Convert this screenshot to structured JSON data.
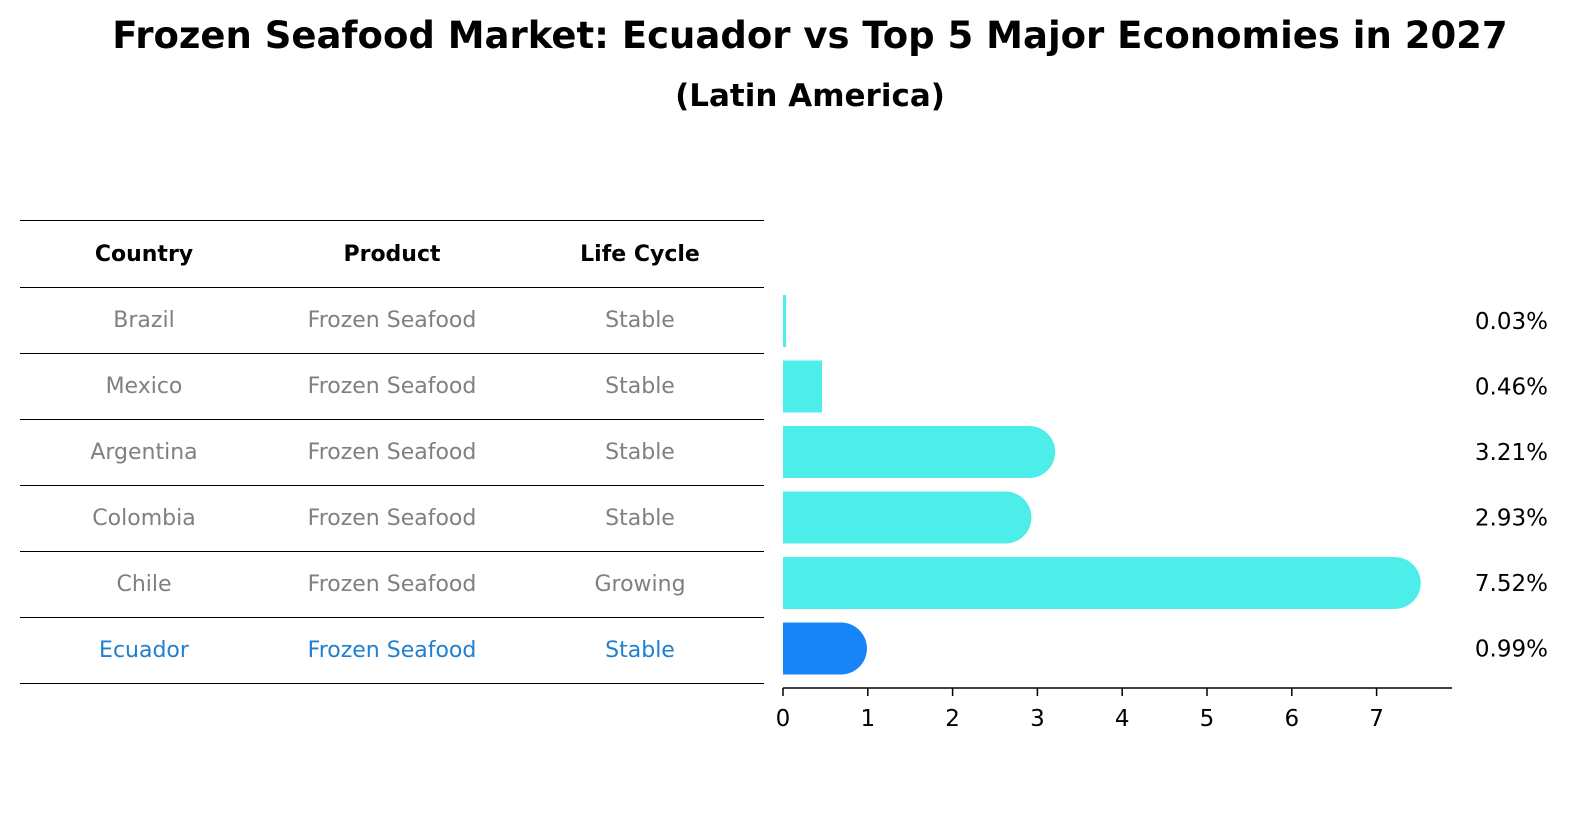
{
  "chart_data": {
    "type": "bar",
    "orientation": "horizontal",
    "title": "Frozen Seafood Market: Ecuador vs Top 5 Major Economies in 2027",
    "subtitle": "(Latin America)",
    "columns": [
      "Country",
      "Product",
      "Life Cycle"
    ],
    "rows": [
      {
        "country": "Brazil",
        "product": "Frozen Seafood",
        "life_cycle": "Stable",
        "value": 0.03,
        "label": "0.03%"
      },
      {
        "country": "Mexico",
        "product": "Frozen Seafood",
        "life_cycle": "Stable",
        "value": 0.46,
        "label": "0.46%"
      },
      {
        "country": "Argentina",
        "product": "Frozen Seafood",
        "life_cycle": "Stable",
        "value": 3.21,
        "label": "3.21%"
      },
      {
        "country": "Colombia",
        "product": "Frozen Seafood",
        "life_cycle": "Stable",
        "value": 2.93,
        "label": "2.93%"
      },
      {
        "country": "Chile",
        "product": "Frozen Seafood",
        "life_cycle": "Growing",
        "value": 7.52,
        "label": "7.52%"
      },
      {
        "country": "Ecuador",
        "product": "Frozen Seafood",
        "life_cycle": "Stable",
        "value": 0.99,
        "label": "0.99%",
        "highlight": true
      }
    ],
    "xticks": [
      0,
      1,
      2,
      3,
      4,
      5,
      6,
      7
    ],
    "xlim": [
      0,
      7.9
    ],
    "colors": {
      "bar": "#4deeea",
      "highlight": "#1785f5",
      "highlight_text": "#1f7fd0",
      "row_text": "#808080"
    }
  }
}
